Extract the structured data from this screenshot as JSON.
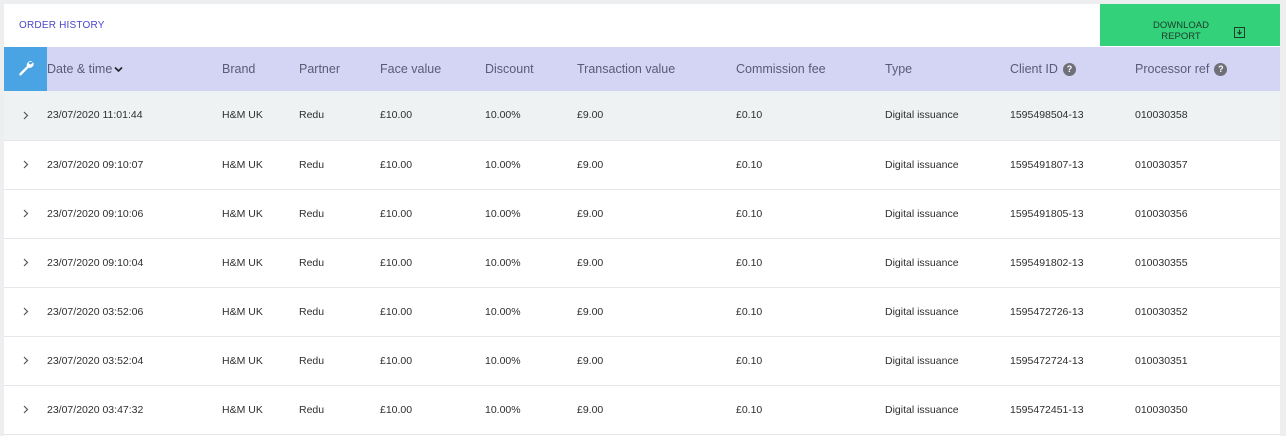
{
  "header": {
    "title": "ORDER HISTORY",
    "download_label": "DOWNLOAD REPORT"
  },
  "table": {
    "columns": [
      "Date & time",
      "Brand",
      "Partner",
      "Face value",
      "Discount",
      "Transaction value",
      "Commission fee",
      "Type",
      "Client ID",
      "Processor ref"
    ],
    "sort_column": "Date & time",
    "help_icon_glyph": "?",
    "rows": [
      {
        "date": "23/07/2020 11:01:44",
        "brand": "H&M UK",
        "partner": "Redu",
        "face": "£10.00",
        "discount": "10.00%",
        "txn": "£9.00",
        "fee": "£0.10",
        "type": "Digital issuance",
        "client": "1595498504-13",
        "proc": "010030358"
      },
      {
        "date": "23/07/2020 09:10:07",
        "brand": "H&M UK",
        "partner": "Redu",
        "face": "£10.00",
        "discount": "10.00%",
        "txn": "£9.00",
        "fee": "£0.10",
        "type": "Digital issuance",
        "client": "1595491807-13",
        "proc": "010030357"
      },
      {
        "date": "23/07/2020 09:10:06",
        "brand": "H&M UK",
        "partner": "Redu",
        "face": "£10.00",
        "discount": "10.00%",
        "txn": "£9.00",
        "fee": "£0.10",
        "type": "Digital issuance",
        "client": "1595491805-13",
        "proc": "010030356"
      },
      {
        "date": "23/07/2020 09:10:04",
        "brand": "H&M UK",
        "partner": "Redu",
        "face": "£10.00",
        "discount": "10.00%",
        "txn": "£9.00",
        "fee": "£0.10",
        "type": "Digital issuance",
        "client": "1595491802-13",
        "proc": "010030355"
      },
      {
        "date": "23/07/2020 03:52:06",
        "brand": "H&M UK",
        "partner": "Redu",
        "face": "£10.00",
        "discount": "10.00%",
        "txn": "£9.00",
        "fee": "£0.10",
        "type": "Digital issuance",
        "client": "1595472726-13",
        "proc": "010030352"
      },
      {
        "date": "23/07/2020 03:52:04",
        "brand": "H&M UK",
        "partner": "Redu",
        "face": "£10.00",
        "discount": "10.00%",
        "txn": "£9.00",
        "fee": "£0.10",
        "type": "Digital issuance",
        "client": "1595472724-13",
        "proc": "010030351"
      },
      {
        "date": "23/07/2020 03:47:32",
        "brand": "H&M UK",
        "partner": "Redu",
        "face": "£10.00",
        "discount": "10.00%",
        "txn": "£9.00",
        "fee": "£0.10",
        "type": "Digital issuance",
        "client": "1595472451-13",
        "proc": "010030350"
      }
    ]
  },
  "colors": {
    "accent_blue": "#4aa3e3",
    "header_row": "#d4d4f5",
    "download_green": "#33d17a",
    "title_purple": "#4a47c9",
    "selected_row": "#eff2f3"
  },
  "icons": {
    "tool": "wrench-icon",
    "download": "download-icon",
    "sort": "chevron-down-icon",
    "expand": "chevron-right-icon",
    "help": "help-icon"
  }
}
